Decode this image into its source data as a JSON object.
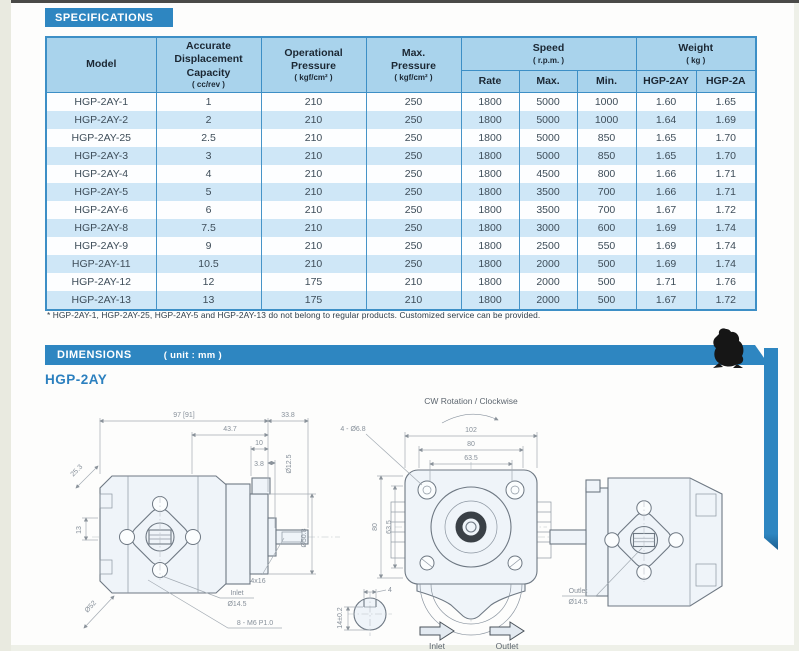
{
  "colors": {
    "bar_blue": "#2e86c1",
    "table_header_bg": "#a9d3ec",
    "row_alt_bg": "#cfe7f7",
    "table_border": "#3d8fc6",
    "model_title_blue": "#2c80bf"
  },
  "spec_section": {
    "title": "SPECIFICATIONS",
    "table": {
      "headers": {
        "model": "Model",
        "disp_1": "Accurate",
        "disp_2": "Displacement",
        "disp_3": "Capacity",
        "disp_unit": "( cc/rev )",
        "op_1": "Operational",
        "op_2": "Pressure",
        "op_unit": "( kgf/cm² )",
        "maxp_1": "Max.",
        "maxp_2": "Pressure",
        "maxp_unit": "( kgf/cm² )",
        "speed": "Speed",
        "speed_unit": "( r.p.m. )",
        "rate": "Rate",
        "max": "Max.",
        "min": "Min.",
        "weight": "Weight",
        "weight_unit": "( kg )",
        "w1": "HGP-2AY",
        "w2": "HGP-2A"
      },
      "rows": [
        {
          "model": "HGP-2AY-1",
          "displacement": "1",
          "op_pressure": "210",
          "max_pressure": "250",
          "rate": "1800",
          "max": "5000",
          "min": "1000",
          "w_2ay": "1.60",
          "w_2a": "1.65"
        },
        {
          "model": "HGP-2AY-2",
          "displacement": "2",
          "op_pressure": "210",
          "max_pressure": "250",
          "rate": "1800",
          "max": "5000",
          "min": "1000",
          "w_2ay": "1.64",
          "w_2a": "1.69"
        },
        {
          "model": "HGP-2AY-25",
          "displacement": "2.5",
          "op_pressure": "210",
          "max_pressure": "250",
          "rate": "1800",
          "max": "5000",
          "min": "850",
          "w_2ay": "1.65",
          "w_2a": "1.70"
        },
        {
          "model": "HGP-2AY-3",
          "displacement": "3",
          "op_pressure": "210",
          "max_pressure": "250",
          "rate": "1800",
          "max": "5000",
          "min": "850",
          "w_2ay": "1.65",
          "w_2a": "1.70"
        },
        {
          "model": "HGP-2AY-4",
          "displacement": "4",
          "op_pressure": "210",
          "max_pressure": "250",
          "rate": "1800",
          "max": "4500",
          "min": "800",
          "w_2ay": "1.66",
          "w_2a": "1.71"
        },
        {
          "model": "HGP-2AY-5",
          "displacement": "5",
          "op_pressure": "210",
          "max_pressure": "250",
          "rate": "1800",
          "max": "3500",
          "min": "700",
          "w_2ay": "1.66",
          "w_2a": "1.71"
        },
        {
          "model": "HGP-2AY-6",
          "displacement": "6",
          "op_pressure": "210",
          "max_pressure": "250",
          "rate": "1800",
          "max": "3500",
          "min": "700",
          "w_2ay": "1.67",
          "w_2a": "1.72"
        },
        {
          "model": "HGP-2AY-8",
          "displacement": "7.5",
          "op_pressure": "210",
          "max_pressure": "250",
          "rate": "1800",
          "max": "3000",
          "min": "600",
          "w_2ay": "1.69",
          "w_2a": "1.74"
        },
        {
          "model": "HGP-2AY-9",
          "displacement": "9",
          "op_pressure": "210",
          "max_pressure": "250",
          "rate": "1800",
          "max": "2500",
          "min": "550",
          "w_2ay": "1.69",
          "w_2a": "1.74"
        },
        {
          "model": "HGP-2AY-11",
          "displacement": "10.5",
          "op_pressure": "210",
          "max_pressure": "250",
          "rate": "1800",
          "max": "2000",
          "min": "500",
          "w_2ay": "1.69",
          "w_2a": "1.74"
        },
        {
          "model": "HGP-2AY-12",
          "displacement": "12",
          "op_pressure": "175",
          "max_pressure": "210",
          "rate": "1800",
          "max": "2000",
          "min": "500",
          "w_2ay": "1.71",
          "w_2a": "1.76"
        },
        {
          "model": "HGP-2AY-13",
          "displacement": "13",
          "op_pressure": "175",
          "max_pressure": "210",
          "rate": "1800",
          "max": "2000",
          "min": "500",
          "w_2ay": "1.67",
          "w_2a": "1.72"
        }
      ]
    },
    "footnote": "* HGP-2AY-1, HGP-2AY-25, HGP-2AY-5 and HGP-2AY-13 do not belong to regular products. Customized service can be provided."
  },
  "dim_section": {
    "title": "DIMENSIONS",
    "unit": "( unit : mm )",
    "model": "HGP-2AY",
    "side_view": {
      "dim_97": "97 [91]",
      "dim_338": "33.8",
      "dim_437": "43.7",
      "dim_10": "10",
      "dim_38": "3.8",
      "dim_253": "25.3",
      "dim_13": "13",
      "dim_d125": "Ø12.5",
      "dim_d508": "Ø50.8",
      "dim_key": "4x16",
      "dim_d52": "Ø52",
      "inlet_label": "Inlet",
      "inlet_dia": "Ø14.5",
      "thread_label": "8 - M6 P1.0"
    },
    "key_detail": {
      "dim_4": "4",
      "dim_14": "14±0.2"
    },
    "front_view": {
      "rotation_label": "CW Rotation / Clockwise",
      "dim_102": "102",
      "dim_80_h": "80",
      "dim_635_h": "63.5",
      "dim_80_v": "80",
      "dim_635_v": "63.5",
      "holes_label": "4 - Ø6.8",
      "inlet_arrow_label": "Inlet",
      "outlet_arrow_label": "Outlet"
    },
    "rear_view": {
      "outlet_label": "Outlet",
      "outlet_dia": "Ø14.5"
    }
  }
}
